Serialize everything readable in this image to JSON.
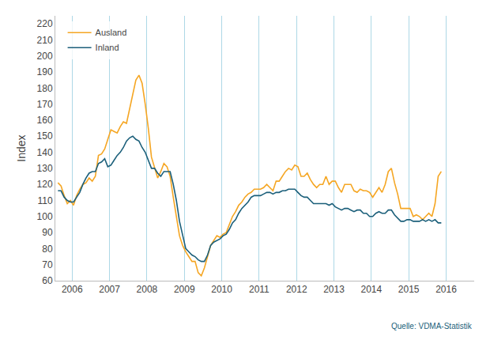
{
  "chart_data": {
    "type": "line",
    "title": "",
    "ylabel": "Index",
    "annotations": [
      "Quelle: VDMA-Statistik"
    ],
    "x": [
      2005.62,
      2005.7033,
      2005.7867,
      2005.87,
      2005.9533,
      2006.0367,
      2006.12,
      2006.2033,
      2006.2867,
      2006.37,
      2006.4533,
      2006.5367,
      2006.62,
      2006.7033,
      2006.7867,
      2006.87,
      2006.9533,
      2007.0367,
      2007.12,
      2007.2033,
      2007.2867,
      2007.37,
      2007.4533,
      2007.5367,
      2007.62,
      2007.7033,
      2007.7867,
      2007.87,
      2007.9533,
      2008.0367,
      2008.12,
      2008.2033,
      2008.2867,
      2008.37,
      2008.4533,
      2008.5367,
      2008.62,
      2008.7033,
      2008.7867,
      2008.87,
      2008.9533,
      2009.0367,
      2009.12,
      2009.2033,
      2009.2867,
      2009.37,
      2009.4533,
      2009.5367,
      2009.62,
      2009.7033,
      2009.7867,
      2009.87,
      2009.9533,
      2010.0367,
      2010.12,
      2010.2033,
      2010.2867,
      2010.37,
      2010.4533,
      2010.5367,
      2010.62,
      2010.7033,
      2010.7867,
      2010.87,
      2010.9533,
      2011.0367,
      2011.12,
      2011.2033,
      2011.2867,
      2011.37,
      2011.4533,
      2011.5367,
      2011.62,
      2011.7033,
      2011.7867,
      2011.87,
      2011.9533,
      2012.0367,
      2012.12,
      2012.2033,
      2012.2867,
      2012.37,
      2012.4533,
      2012.5367,
      2012.62,
      2012.7033,
      2012.7867,
      2012.87,
      2012.9533,
      2013.0367,
      2013.12,
      2013.2033,
      2013.2867,
      2013.37,
      2013.4533,
      2013.5367,
      2013.62,
      2013.7033,
      2013.7867,
      2013.87,
      2013.9533,
      2014.0367,
      2014.12,
      2014.2033,
      2014.2867,
      2014.37,
      2014.4533,
      2014.5367,
      2014.62,
      2014.7033,
      2014.7867,
      2014.87,
      2014.9533,
      2015.0367,
      2015.12,
      2015.2033,
      2015.2867,
      2015.37,
      2015.4533,
      2015.5367,
      2015.62,
      2015.7033,
      2015.7867,
      2015.87
    ],
    "series": [
      {
        "name": "Ausland",
        "color": "#F5A623",
        "values": [
          121,
          119,
          113,
          108,
          110,
          107,
          113,
          117,
          120,
          121,
          124,
          122,
          125,
          138,
          139,
          142,
          148,
          154,
          153,
          152,
          156,
          159,
          158,
          167,
          175,
          185,
          188,
          183,
          170,
          155,
          137,
          130,
          124,
          128,
          133,
          131,
          125,
          112,
          100,
          88,
          82,
          78,
          75,
          72,
          72,
          65,
          63,
          68,
          75,
          82,
          85,
          88,
          87,
          89,
          90,
          95,
          100,
          103,
          107,
          109,
          112,
          114,
          115,
          117,
          117,
          117,
          118,
          120,
          118,
          116,
          122,
          122,
          125,
          128,
          130,
          129,
          132,
          131,
          125,
          125,
          127,
          123,
          120,
          118,
          120,
          120,
          125,
          120,
          122,
          122,
          118,
          115,
          120,
          120,
          120,
          116,
          115,
          117,
          116,
          116,
          115,
          112,
          115,
          118,
          115,
          120,
          128,
          130,
          121,
          114,
          105,
          105,
          105,
          105,
          100,
          101,
          100,
          98,
          100,
          102,
          100,
          108,
          125,
          128
        ]
      },
      {
        "name": "Inland",
        "color": "#1B5F7A",
        "values": [
          116,
          116,
          112,
          110,
          109,
          109,
          112,
          115,
          120,
          124,
          127,
          128,
          128,
          133,
          134,
          136,
          131,
          132,
          135,
          138,
          140,
          143,
          147,
          149,
          150,
          148,
          147,
          143,
          140,
          135,
          130,
          130,
          127,
          125,
          128,
          128,
          128,
          120,
          110,
          97,
          88,
          80,
          78,
          76,
          75,
          73,
          72,
          72,
          76,
          82,
          84,
          85,
          86,
          88,
          89,
          92,
          96,
          98,
          102,
          105,
          107,
          109,
          112,
          113,
          113,
          113,
          114,
          115,
          115,
          114,
          115,
          115,
          116,
          116,
          117,
          117,
          117,
          115,
          113,
          112,
          112,
          110,
          108,
          108,
          108,
          108,
          108,
          107,
          108,
          106,
          105,
          104,
          105,
          105,
          104,
          103,
          104,
          104,
          102,
          102,
          100,
          100,
          102,
          103,
          102,
          102,
          104,
          104,
          101,
          99,
          97,
          97,
          98,
          98,
          97,
          97,
          97,
          98,
          97,
          98,
          97,
          98,
          96,
          96
        ]
      }
    ],
    "xlim": [
      2005.55,
      2016.75
    ],
    "xticks": [
      2006,
      2007,
      2008,
      2009,
      2010,
      2011,
      2012,
      2013,
      2014,
      2015,
      2016
    ],
    "ylim": [
      60,
      225
    ],
    "yticks": [
      60,
      70,
      80,
      90,
      100,
      110,
      120,
      130,
      140,
      150,
      160,
      170,
      180,
      190,
      200,
      210,
      220
    ],
    "grid": "x",
    "legend": "upper left"
  }
}
